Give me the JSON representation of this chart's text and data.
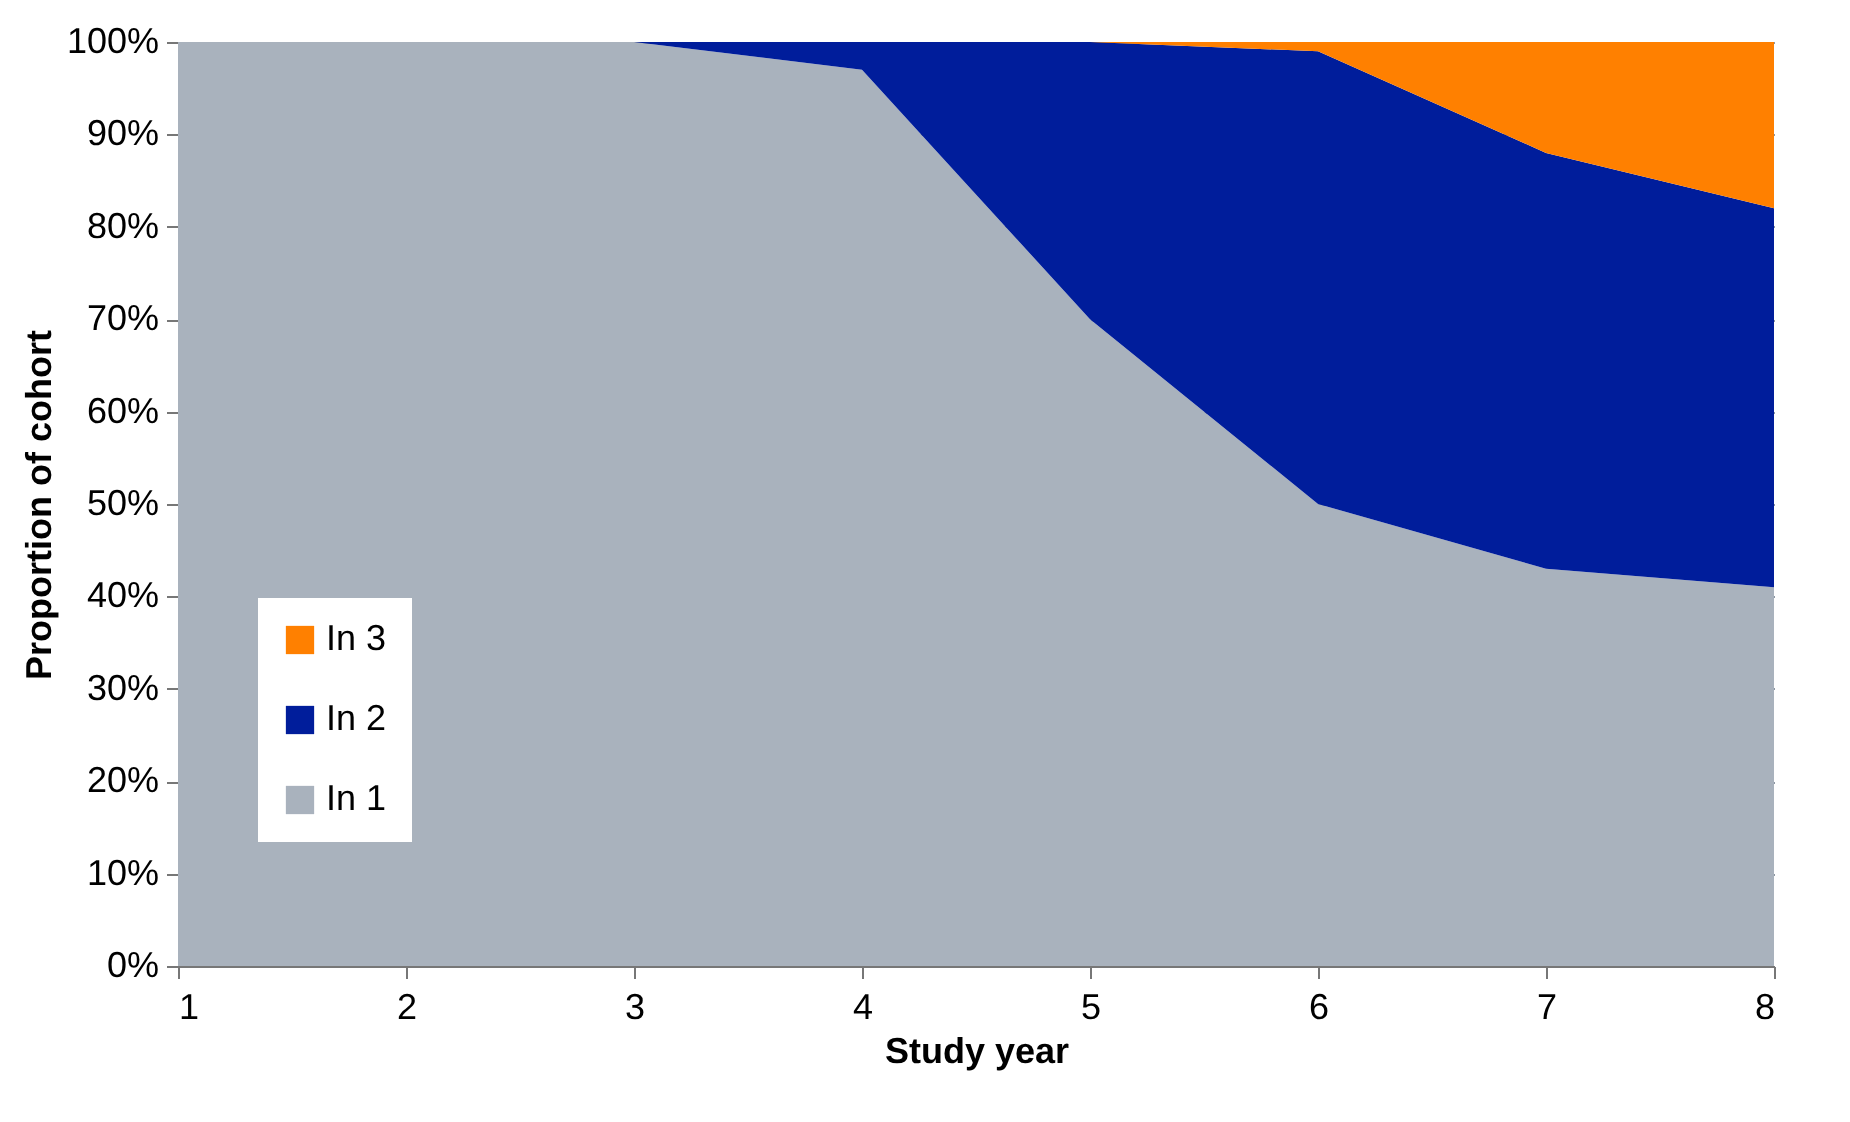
{
  "chart_data": {
    "type": "area",
    "stacked": true,
    "xlabel": "Study year",
    "ylabel": "Proportion of cohort",
    "x": [
      1,
      2,
      3,
      4,
      5,
      6,
      7,
      8
    ],
    "series": [
      {
        "name": "In 1",
        "color": "#a9b2bd",
        "values": [
          100,
          100,
          100,
          97,
          70,
          50,
          43,
          41
        ]
      },
      {
        "name": "In 2",
        "color": "#001d9b",
        "values": [
          0,
          0,
          0,
          3,
          30,
          49,
          45,
          41
        ]
      },
      {
        "name": "In 3",
        "color": "#ff8000",
        "values": [
          0,
          0,
          0,
          0,
          0,
          1,
          12,
          18
        ]
      }
    ],
    "xlim": [
      1,
      8
    ],
    "xticks": [
      1,
      2,
      3,
      4,
      5,
      6,
      7,
      8
    ],
    "ylim": [
      0,
      100
    ],
    "yticks": [
      {
        "value": 0,
        "label": "0%"
      },
      {
        "value": 10,
        "label": "10%"
      },
      {
        "value": 20,
        "label": "20%"
      },
      {
        "value": 30,
        "label": "30%"
      },
      {
        "value": 40,
        "label": "40%"
      },
      {
        "value": 50,
        "label": "50%"
      },
      {
        "value": 60,
        "label": "60%"
      },
      {
        "value": 70,
        "label": "70%"
      },
      {
        "value": 80,
        "label": "80%"
      },
      {
        "value": 90,
        "label": "90%"
      },
      {
        "value": 100,
        "label": "100%"
      }
    ],
    "grid": "y",
    "legend": "bottom left"
  }
}
